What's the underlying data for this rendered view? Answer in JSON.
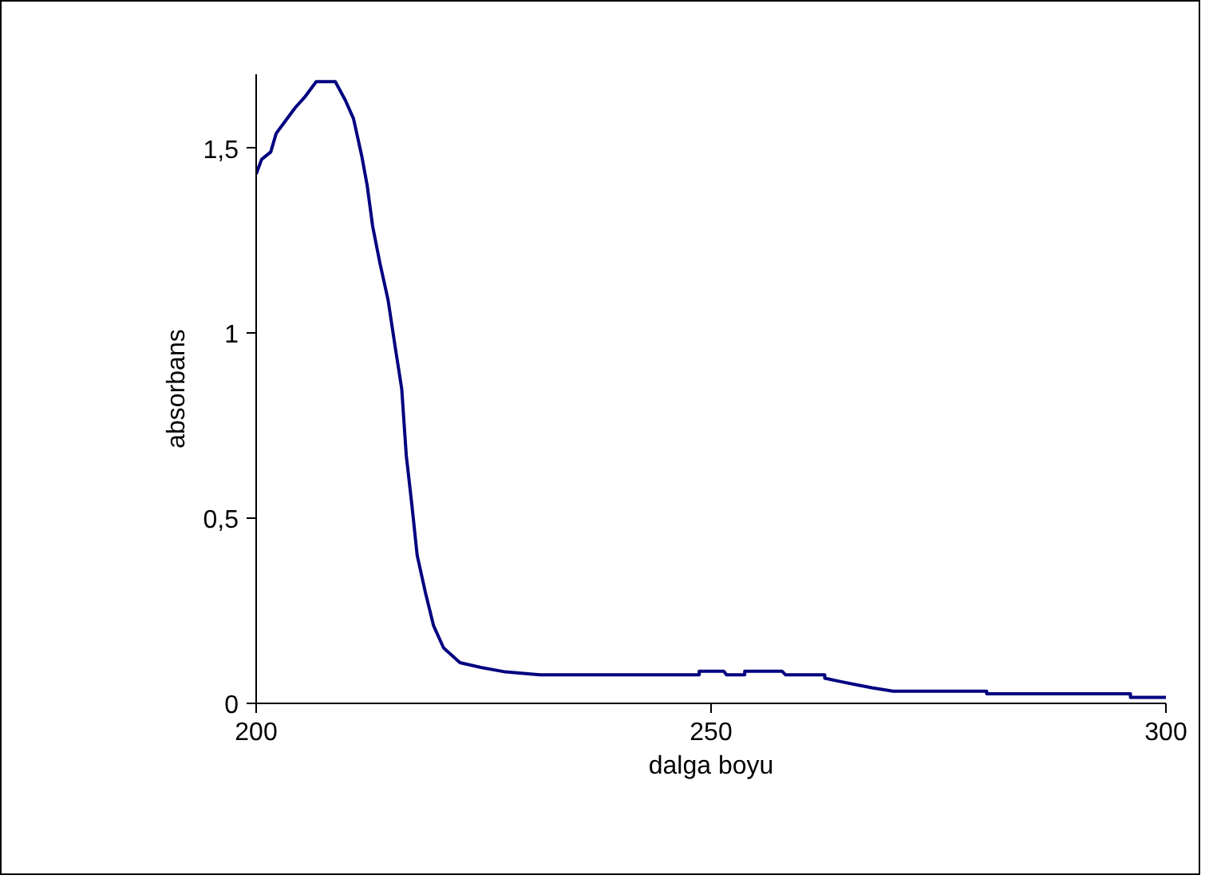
{
  "chart_data": {
    "type": "line",
    "xlabel": "dalga boyu",
    "ylabel": "absorbans",
    "xlim": [
      200,
      300
    ],
    "xticks": [
      200,
      250,
      300
    ],
    "ylim": [
      0,
      1.7
    ],
    "yticks": [
      0,
      {
        "value": 0.5,
        "label": "0,5"
      },
      1,
      {
        "value": 1.5,
        "label": "1,5"
      }
    ],
    "grid": false,
    "marker": "none",
    "line_style": "solid",
    "series": [
      {
        "color": "#000080",
        "x": [
          200,
          200.6,
          201.6,
          202.2,
          203.1,
          204.3,
          205.4,
          206.6,
          208.7,
          209.8,
          210.7,
          211.6,
          212.2,
          212.8,
          213.6,
          214.5,
          215.3,
          216.0,
          216.5,
          217.1,
          217.7,
          218.6,
          219.5,
          220.6,
          222.4,
          224.7,
          227.4,
          231.2,
          248.7,
          248.7,
          251.4,
          251.7,
          253.7,
          253.7,
          257.8,
          258.2,
          262.5,
          262.5,
          264.2,
          266,
          267.7,
          270,
          280.3,
          280.3,
          296.1,
          296.1,
          300
        ],
        "values": [
          1.43,
          1.47,
          1.49,
          1.54,
          1.57,
          1.61,
          1.64,
          1.68,
          1.68,
          1.63,
          1.58,
          1.48,
          1.4,
          1.29,
          1.19,
          1.09,
          0.96,
          0.85,
          0.67,
          0.54,
          0.4,
          0.3,
          0.21,
          0.15,
          0.11,
          0.097,
          0.085,
          0.077,
          0.077,
          0.087,
          0.087,
          0.077,
          0.077,
          0.087,
          0.087,
          0.077,
          0.077,
          0.068,
          0.059,
          0.05,
          0.042,
          0.033,
          0.033,
          0.026,
          0.026,
          0.016,
          0.016
        ]
      }
    ]
  }
}
